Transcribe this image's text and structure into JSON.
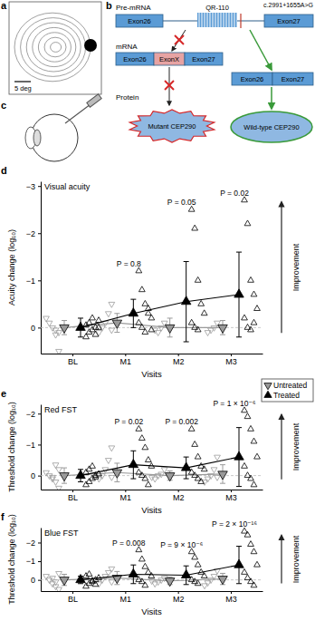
{
  "figure": {
    "panel_labels": [
      "a",
      "b",
      "c"
    ],
    "panel_a": {
      "scale_label": "5 deg"
    },
    "panel_b": {
      "pre_mrna_label": "Pre-mRNA",
      "pre_mrna_exons": [
        "Exon26",
        "Exon27"
      ],
      "oligo": "QR-110",
      "mutation": "c.2991+1655A>G",
      "mrna_label": "mRNA",
      "mrna_mutant_exons": [
        "Exon26",
        "ExonX",
        "Exon27"
      ],
      "mrna_wild_type_exons": [
        "Exon26",
        "Exon27"
      ],
      "protein_label": "Protein",
      "mutant_protein": "Mutant CEP290",
      "wild_type_protein": "Wild-type CEP290"
    }
  },
  "chart_data": [
    {
      "type": "scatter",
      "panel": "d",
      "title": "Visual acuity",
      "x_label": "Visits",
      "y_label": "Acuity change (log₁₀)",
      "annotation": "Improvement",
      "categories": [
        "BL",
        "M1",
        "M2",
        "M3"
      ],
      "ylim": [
        0.55,
        -3.1
      ],
      "yticks": [
        {
          "value": -3,
          "label": "−3"
        },
        {
          "value": -2,
          "label": "−2"
        },
        {
          "value": -1,
          "label": "−1"
        },
        0
      ],
      "baseline": 0,
      "p_values": [
        null,
        "P = 0.8",
        "P = 0.05",
        "P = 0.02"
      ],
      "series": [
        {
          "name": "Untreated",
          "color": "#9a9a9a",
          "marker": "triangle-down",
          "line_style": "solid",
          "values": [
            0,
            -0.1,
            0,
            0
          ],
          "error": [
            0.15,
            0.2,
            0.2,
            0.15
          ],
          "points": [
            [
              0.5,
              0.15,
              0,
              -0.1,
              -0.2,
              0.1,
              0.05
            ],
            [
              -0.5,
              -0.3,
              -0.1,
              0,
              0.1,
              0.05
            ],
            [
              -0.1,
              0,
              0.1,
              0.05
            ],
            [
              -0.1,
              0,
              0.05,
              0.1
            ]
          ]
        },
        {
          "name": "Treated",
          "color": "#000000",
          "marker": "triangle-up",
          "line_style": "solid",
          "values": [
            0,
            -0.3,
            -0.55,
            -0.7
          ],
          "error": [
            0.2,
            0.3,
            0.85,
            0.9
          ],
          "points": [
            [
              0.2,
              0.1,
              0.05,
              0,
              0,
              -0.05,
              -0.1,
              -0.2,
              0.15,
              -0.15
            ],
            [
              -1.2,
              -0.8,
              -0.5,
              -0.3,
              -0.2,
              -0.1,
              0,
              0.1,
              -0.4,
              0.05
            ],
            [
              -2.5,
              -2.1,
              -1.0,
              -0.5,
              -0.3,
              -0.1,
              0,
              0.05
            ],
            [
              -2.7,
              -2.2,
              -1.0,
              -0.7,
              -0.4,
              -0.2,
              0,
              0.05,
              -0.1
            ]
          ]
        }
      ]
    },
    {
      "type": "scatter",
      "panel": "e",
      "title": "Red FST",
      "x_label": "Visits",
      "y_label": "Threshold change (log₁₀)",
      "annotation": "Improvement",
      "categories": [
        "BL",
        "M1",
        "M2",
        "M3"
      ],
      "ylim": [
        0.45,
        -2.3
      ],
      "yticks": [
        {
          "value": -2,
          "label": "−2"
        },
        {
          "value": -1,
          "label": "−1"
        },
        0
      ],
      "baseline": 0,
      "legend": "top right",
      "p_values": [
        null,
        "P = 0.02",
        "P = 0.002",
        "P = 1 × 10⁻⁶"
      ],
      "series": [
        {
          "name": "Untreated",
          "color": "#9a9a9a",
          "marker": "triangle-down",
          "line_style": "solid",
          "values": [
            0,
            -0.1,
            0,
            -0.05
          ],
          "error": [
            0.25,
            0.3,
            0.15,
            0.3
          ],
          "points": [
            [
              0.4,
              0.2,
              0.1,
              0,
              -0.1,
              -0.2,
              -0.35,
              0.05
            ],
            [
              -0.9,
              -0.5,
              -0.2,
              0,
              0.1,
              0.05
            ],
            [
              -0.2,
              -0.05,
              0,
              0.1,
              0.05
            ],
            [
              -0.6,
              -0.2,
              0,
              0.1,
              0.2,
              0.05
            ]
          ]
        },
        {
          "name": "Treated",
          "color": "#000000",
          "marker": "triangle-up",
          "line_style": "solid",
          "values": [
            0,
            -0.35,
            -0.25,
            -0.6
          ],
          "error": [
            0.2,
            0.45,
            0.35,
            0.95
          ],
          "points": [
            [
              0.3,
              0.2,
              0.1,
              0,
              -0.05,
              -0.1,
              -0.2,
              -0.3,
              0.05
            ],
            [
              -1.5,
              -1.2,
              -0.9,
              -0.5,
              -0.3,
              -0.1,
              0,
              0.1,
              0.3
            ],
            [
              -1.5,
              -1.0,
              -0.6,
              -0.3,
              -0.2,
              -0.1,
              0,
              0.1,
              0.2
            ],
            [
              -2.1,
              -1.9,
              -1.5,
              -1.1,
              -0.6,
              -0.3,
              0,
              0.1,
              0.3
            ]
          ]
        }
      ]
    },
    {
      "type": "scatter",
      "panel": "f",
      "title": "Blue FST",
      "x_label": "Visits",
      "y_label": "Threshold change (log₁₀)",
      "annotation": "Improvement",
      "categories": [
        "BL",
        "M1",
        "M2",
        "M3"
      ],
      "ylim": [
        0.6,
        -2.8
      ],
      "yticks": [
        {
          "value": -2,
          "label": "−2"
        },
        {
          "value": -1,
          "label": "−1"
        },
        0
      ],
      "baseline": 0,
      "p_values": [
        null,
        "P = 0.008",
        "P = 9 × 10⁻⁶",
        "P = 2 × 10⁻¹⁶"
      ],
      "series": [
        {
          "name": "Untreated",
          "color": "#9a9a9a",
          "marker": "triangle-down",
          "line_style": "solid",
          "values": [
            0,
            -0.1,
            0.05,
            -0.05
          ],
          "error": [
            0.3,
            0.35,
            0.2,
            0.3
          ],
          "points": [
            [
              0.5,
              0.35,
              0.2,
              0,
              -0.2,
              -0.35,
              0.1,
              -0.1
            ],
            [
              -0.6,
              -0.4,
              -0.2,
              0,
              0.2,
              0.1
            ],
            [
              -0.1,
              0,
              0.1,
              0.2,
              0.05
            ],
            [
              -0.5,
              -0.2,
              0,
              0.15,
              0.3
            ]
          ]
        },
        {
          "name": "Treated",
          "color": "#000000",
          "marker": "triangle-up",
          "line_style": "solid",
          "values": [
            0,
            -0.3,
            -0.25,
            -0.8
          ],
          "error": [
            0.2,
            0.5,
            0.5,
            1.0
          ],
          "points": [
            [
              0.35,
              0.2,
              0.1,
              0,
              -0.1,
              -0.2,
              -0.3,
              0.05,
              0.25
            ],
            [
              -1.6,
              -1.1,
              -0.7,
              -0.4,
              -0.2,
              0,
              0.1,
              0.3
            ],
            [
              -1.5,
              -1.2,
              -0.8,
              -0.4,
              -0.2,
              0,
              0.1,
              0.2
            ],
            [
              -2.6,
              -2.4,
              -1.9,
              -1.5,
              -0.8,
              -0.4,
              -0.1,
              0.1,
              0.3
            ]
          ]
        }
      ]
    }
  ]
}
